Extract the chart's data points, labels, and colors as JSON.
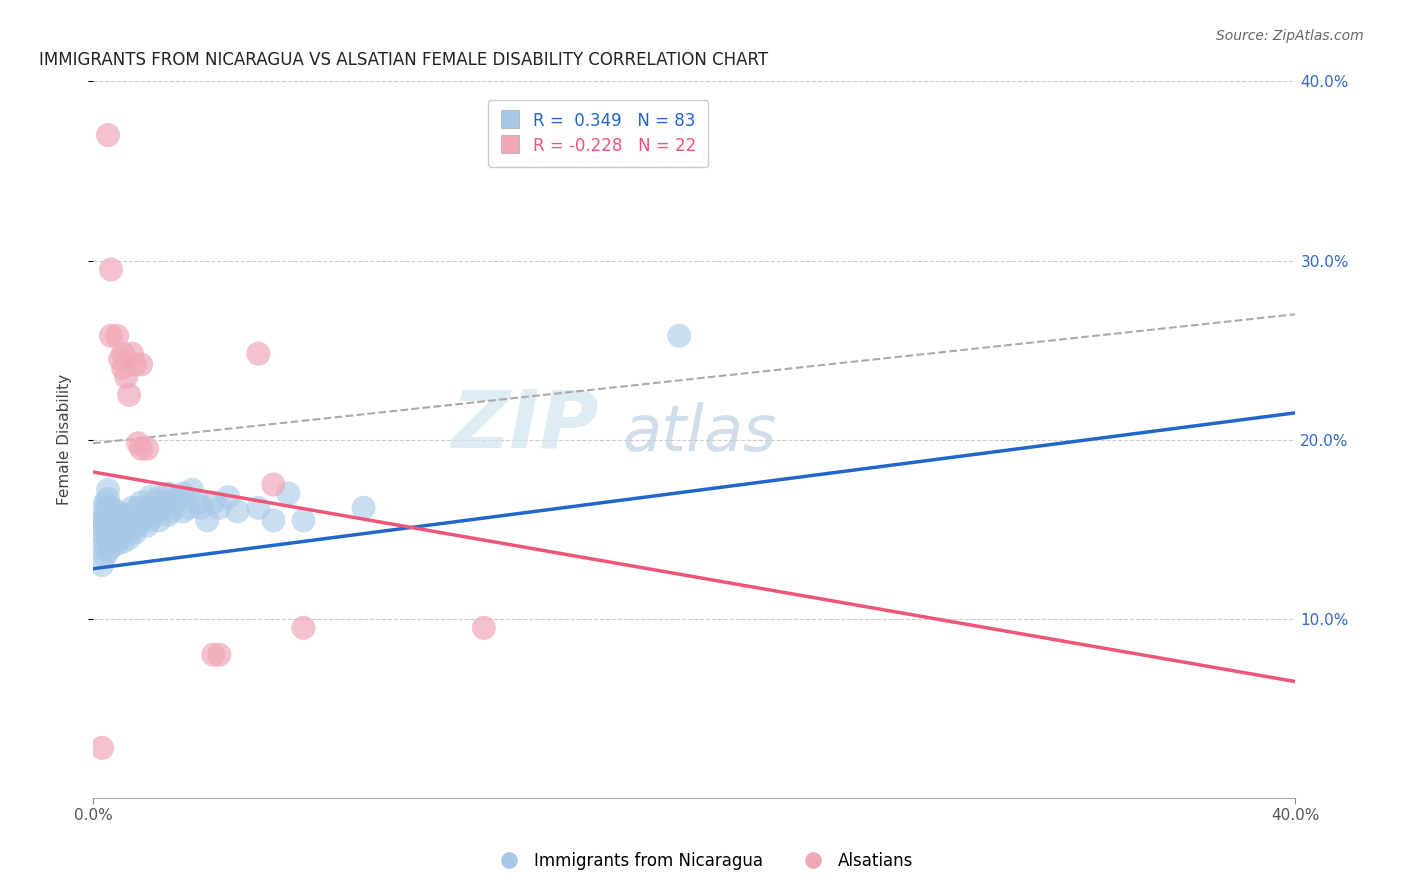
{
  "title": "IMMIGRANTS FROM NICARAGUA VS ALSATIAN FEMALE DISABILITY CORRELATION CHART",
  "source": "Source: ZipAtlas.com",
  "ylabel": "Female Disability",
  "xlim": [
    0.0,
    0.4
  ],
  "ylim": [
    0.0,
    0.4
  ],
  "ytick_values": [
    0.1,
    0.2,
    0.3,
    0.4
  ],
  "ytick_labels": [
    "10.0%",
    "20.0%",
    "30.0%",
    "40.0%"
  ],
  "blue_color": "#a8c8e8",
  "pink_color": "#f0a8b8",
  "blue_line_color": "#2266cc",
  "pink_line_color": "#ee5577",
  "blue_scatter": [
    [
      0.003,
      0.13
    ],
    [
      0.003,
      0.14
    ],
    [
      0.003,
      0.148
    ],
    [
      0.003,
      0.152
    ],
    [
      0.003,
      0.155
    ],
    [
      0.004,
      0.135
    ],
    [
      0.004,
      0.142
    ],
    [
      0.004,
      0.148
    ],
    [
      0.004,
      0.155
    ],
    [
      0.004,
      0.158
    ],
    [
      0.004,
      0.162
    ],
    [
      0.004,
      0.165
    ],
    [
      0.005,
      0.138
    ],
    [
      0.005,
      0.145
    ],
    [
      0.005,
      0.15
    ],
    [
      0.005,
      0.155
    ],
    [
      0.005,
      0.158
    ],
    [
      0.005,
      0.162
    ],
    [
      0.005,
      0.167
    ],
    [
      0.005,
      0.172
    ],
    [
      0.006,
      0.14
    ],
    [
      0.006,
      0.148
    ],
    [
      0.006,
      0.152
    ],
    [
      0.006,
      0.158
    ],
    [
      0.006,
      0.162
    ],
    [
      0.007,
      0.145
    ],
    [
      0.007,
      0.15
    ],
    [
      0.007,
      0.155
    ],
    [
      0.007,
      0.16
    ],
    [
      0.008,
      0.142
    ],
    [
      0.008,
      0.148
    ],
    [
      0.008,
      0.153
    ],
    [
      0.008,
      0.16
    ],
    [
      0.009,
      0.148
    ],
    [
      0.009,
      0.155
    ],
    [
      0.01,
      0.143
    ],
    [
      0.01,
      0.15
    ],
    [
      0.01,
      0.158
    ],
    [
      0.011,
      0.148
    ],
    [
      0.012,
      0.145
    ],
    [
      0.012,
      0.158
    ],
    [
      0.013,
      0.15
    ],
    [
      0.013,
      0.162
    ],
    [
      0.014,
      0.148
    ],
    [
      0.014,
      0.155
    ],
    [
      0.015,
      0.152
    ],
    [
      0.015,
      0.162
    ],
    [
      0.016,
      0.155
    ],
    [
      0.016,
      0.165
    ],
    [
      0.017,
      0.158
    ],
    [
      0.018,
      0.152
    ],
    [
      0.018,
      0.162
    ],
    [
      0.019,
      0.155
    ],
    [
      0.019,
      0.168
    ],
    [
      0.02,
      0.158
    ],
    [
      0.02,
      0.165
    ],
    [
      0.021,
      0.16
    ],
    [
      0.022,
      0.155
    ],
    [
      0.022,
      0.168
    ],
    [
      0.023,
      0.162
    ],
    [
      0.024,
      0.165
    ],
    [
      0.025,
      0.158
    ],
    [
      0.025,
      0.17
    ],
    [
      0.026,
      0.16
    ],
    [
      0.027,
      0.165
    ],
    [
      0.028,
      0.168
    ],
    [
      0.03,
      0.16
    ],
    [
      0.03,
      0.17
    ],
    [
      0.032,
      0.162
    ],
    [
      0.033,
      0.172
    ],
    [
      0.035,
      0.165
    ],
    [
      0.036,
      0.162
    ],
    [
      0.038,
      0.155
    ],
    [
      0.04,
      0.165
    ],
    [
      0.042,
      0.162
    ],
    [
      0.045,
      0.168
    ],
    [
      0.048,
      0.16
    ],
    [
      0.055,
      0.162
    ],
    [
      0.06,
      0.155
    ],
    [
      0.065,
      0.17
    ],
    [
      0.07,
      0.155
    ],
    [
      0.09,
      0.162
    ],
    [
      0.195,
      0.258
    ]
  ],
  "pink_scatter": [
    [
      0.003,
      0.028
    ],
    [
      0.005,
      0.37
    ],
    [
      0.006,
      0.295
    ],
    [
      0.006,
      0.258
    ],
    [
      0.008,
      0.258
    ],
    [
      0.009,
      0.245
    ],
    [
      0.01,
      0.248
    ],
    [
      0.01,
      0.24
    ],
    [
      0.011,
      0.235
    ],
    [
      0.012,
      0.225
    ],
    [
      0.013,
      0.248
    ],
    [
      0.014,
      0.242
    ],
    [
      0.015,
      0.198
    ],
    [
      0.016,
      0.195
    ],
    [
      0.016,
      0.242
    ],
    [
      0.018,
      0.195
    ],
    [
      0.04,
      0.08
    ],
    [
      0.042,
      0.08
    ],
    [
      0.055,
      0.248
    ],
    [
      0.06,
      0.175
    ],
    [
      0.07,
      0.095
    ],
    [
      0.13,
      0.095
    ]
  ],
  "blue_trend": [
    0.0,
    0.4,
    0.128,
    0.215
  ],
  "pink_trend": [
    0.0,
    0.4,
    0.182,
    0.065
  ],
  "gray_dashed": [
    0.0,
    0.4,
    0.198,
    0.27
  ],
  "watermark_top": "ZIP",
  "watermark_bot": "atlas"
}
